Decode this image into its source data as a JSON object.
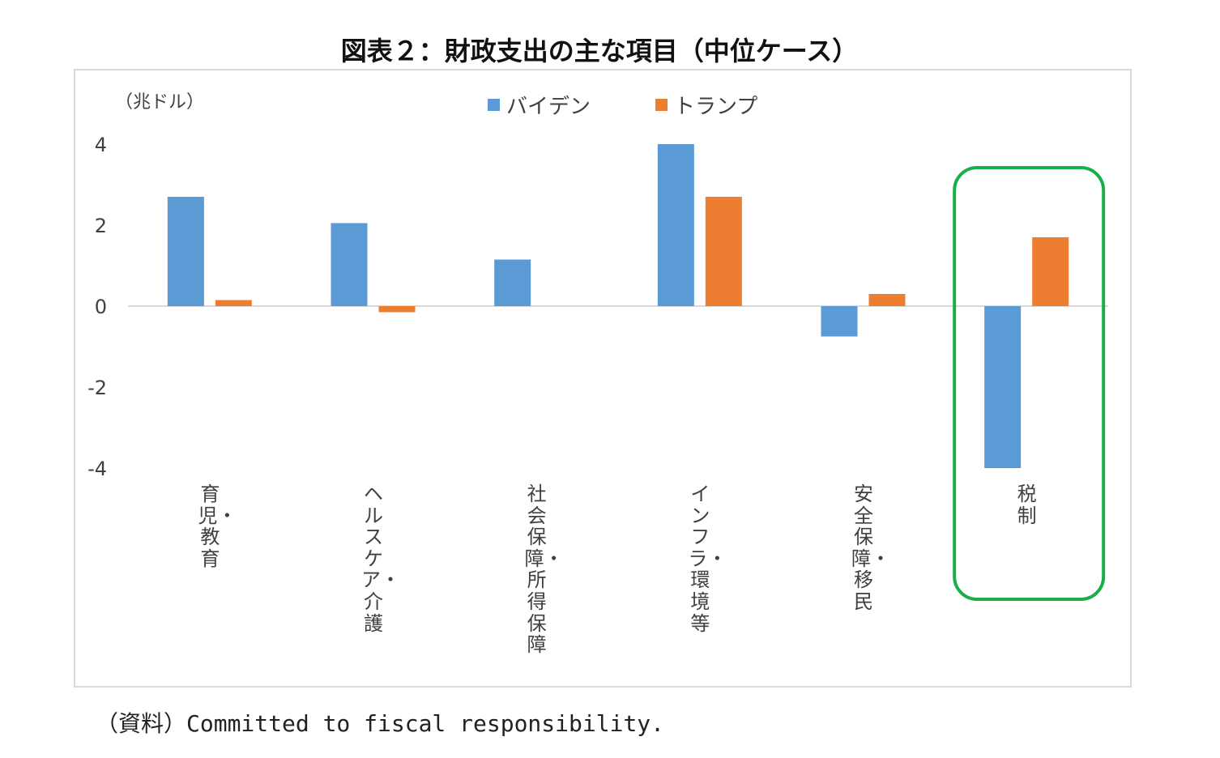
{
  "title": "図表２：財政支出の主な項目（中位ケース）",
  "source": "（資料）Committed to fiscal responsibility.",
  "colors": {
    "biden": "#5B9BD5",
    "trump": "#ED7D31",
    "highlight": "#1AAE4A",
    "axis": "#d9d9d9",
    "text": "#404040"
  },
  "chart_data": {
    "type": "bar",
    "title": "図表２：財政支出の主な項目（中位ケース）",
    "unit_label": "（兆ドル）",
    "categories": [
      "育児・教育",
      "ヘルスケア・介護",
      "社会保障・所得保障",
      "インフラ・環境等",
      "安全保障・移民",
      "税制"
    ],
    "series": [
      {
        "name": "バイデン",
        "values": [
          2.7,
          2.05,
          1.15,
          4.0,
          -0.75,
          -4.0
        ]
      },
      {
        "name": "トランプ",
        "values": [
          0.15,
          -0.15,
          0.0,
          2.7,
          0.3,
          1.7
        ]
      }
    ],
    "ylim": [
      -4,
      4
    ],
    "yticks": [
      "4",
      "2",
      "0",
      "-2",
      "-4"
    ],
    "legend_position": "top",
    "highlighted_category": "税制",
    "grid": false
  }
}
